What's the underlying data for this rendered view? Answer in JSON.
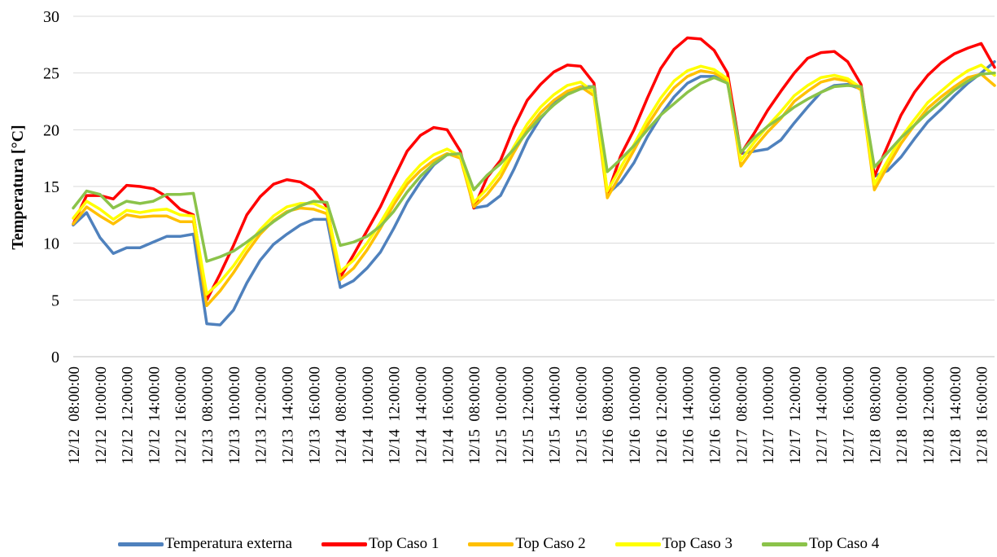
{
  "chart_data": {
    "type": "line",
    "title": "",
    "xlabel": "",
    "ylabel": "Temperatura [°C]",
    "ylim": [
      0,
      30
    ],
    "yticks": [
      0,
      5,
      10,
      15,
      20,
      25,
      30
    ],
    "grid": "horizontal",
    "legend_position": "bottom",
    "x": [
      "12/12 08:00:00",
      "12/12 09:00:00",
      "12/12 10:00:00",
      "12/12 11:00:00",
      "12/12 12:00:00",
      "12/12 13:00:00",
      "12/12 14:00:00",
      "12/12 15:00:00",
      "12/12 16:00:00",
      "12/12 17:00:00",
      "12/13 08:00:00",
      "12/13 09:00:00",
      "12/13 10:00:00",
      "12/13 11:00:00",
      "12/13 12:00:00",
      "12/13 13:00:00",
      "12/13 14:00:00",
      "12/13 15:00:00",
      "12/13 16:00:00",
      "12/13 17:00:00",
      "12/14 08:00:00",
      "12/14 09:00:00",
      "12/14 10:00:00",
      "12/14 11:00:00",
      "12/14 12:00:00",
      "12/14 13:00:00",
      "12/14 14:00:00",
      "12/14 15:00:00",
      "12/14 16:00:00",
      "12/14 17:00:00",
      "12/15 08:00:00",
      "12/15 09:00:00",
      "12/15 10:00:00",
      "12/15 11:00:00",
      "12/15 12:00:00",
      "12/15 13:00:00",
      "12/15 14:00:00",
      "12/15 15:00:00",
      "12/15 16:00:00",
      "12/15 17:00:00",
      "12/16 08:00:00",
      "12/16 09:00:00",
      "12/16 10:00:00",
      "12/16 11:00:00",
      "12/16 12:00:00",
      "12/16 13:00:00",
      "12/16 14:00:00",
      "12/16 15:00:00",
      "12/16 16:00:00",
      "12/16 17:00:00",
      "12/17 08:00:00",
      "12/17 09:00:00",
      "12/17 10:00:00",
      "12/17 11:00:00",
      "12/17 12:00:00",
      "12/17 13:00:00",
      "12/17 14:00:00",
      "12/17 15:00:00",
      "12/17 16:00:00",
      "12/17 17:00:00",
      "12/18 08:00:00",
      "12/18 09:00:00",
      "12/18 10:00:00",
      "12/18 11:00:00",
      "12/18 12:00:00",
      "12/18 13:00:00",
      "12/18 14:00:00",
      "12/18 15:00:00",
      "12/18 16:00:00",
      "12/18 17:00:00"
    ],
    "x_tick_labels": [
      "12/12  08:00:00",
      "12/12  10:00:00",
      "12/12  12:00:00",
      "12/12  14:00:00",
      "12/12  16:00:00",
      "12/13  08:00:00",
      "12/13  10:00:00",
      "12/13  12:00:00",
      "12/13  14:00:00",
      "12/13  16:00:00",
      "12/14  08:00:00",
      "12/14  10:00:00",
      "12/14  12:00:00",
      "12/14  14:00:00",
      "12/14  16:00:00",
      "12/15  08:00:00",
      "12/15  10:00:00",
      "12/15  12:00:00",
      "12/15  14:00:00",
      "12/15  16:00:00",
      "12/16  08:00:00",
      "12/16  10:00:00",
      "12/16  12:00:00",
      "12/16  14:00:00",
      "12/16  16:00:00",
      "12/17  08:00:00",
      "12/17  10:00:00",
      "12/17  12:00:00",
      "12/17  14:00:00",
      "12/17  16:00:00",
      "12/18  08:00:00",
      "12/18  10:00:00",
      "12/18  12:00:00",
      "12/18  14:00:00",
      "12/18  16:00:00"
    ],
    "series": [
      {
        "name": "Temperatura externa",
        "color": "#4f81bd",
        "values": [
          11.6,
          12.7,
          10.5,
          9.1,
          9.6,
          9.6,
          10.1,
          10.6,
          10.6,
          10.8,
          2.9,
          2.8,
          4.1,
          6.5,
          8.5,
          9.9,
          10.8,
          11.6,
          12.1,
          12.1,
          6.1,
          6.7,
          7.8,
          9.2,
          11.3,
          13.6,
          15.4,
          16.9,
          17.8,
          17.9,
          13.1,
          13.3,
          14.2,
          16.5,
          19.1,
          21.0,
          22.3,
          23.3,
          23.8,
          23.8,
          14.3,
          15.4,
          17.1,
          19.4,
          21.3,
          22.9,
          24.1,
          24.7,
          24.7,
          24.3,
          17.9,
          18.1,
          18.3,
          19.1,
          20.6,
          22.0,
          23.3,
          23.9,
          24.0,
          23.6,
          15.9,
          16.4,
          17.6,
          19.2,
          20.7,
          21.8,
          23.0,
          24.1,
          25.0,
          26.0
        ]
      },
      {
        "name": "Top Caso 1",
        "color": "#ff0000",
        "values": [
          11.7,
          14.2,
          14.2,
          13.9,
          15.1,
          15.0,
          14.8,
          14.1,
          13.0,
          12.5,
          5.0,
          7.3,
          9.8,
          12.5,
          14.1,
          15.2,
          15.6,
          15.4,
          14.7,
          13.2,
          7.0,
          9.0,
          11.1,
          13.2,
          15.7,
          18.1,
          19.5,
          20.2,
          20.0,
          18.1,
          13.1,
          15.8,
          17.3,
          20.2,
          22.6,
          24.0,
          25.1,
          25.7,
          25.6,
          24.1,
          14.3,
          17.7,
          20.0,
          22.8,
          25.4,
          27.1,
          28.1,
          28.0,
          27.0,
          25.0,
          17.9,
          19.7,
          21.7,
          23.4,
          25.0,
          26.3,
          26.8,
          26.9,
          26.0,
          24.0,
          15.9,
          18.6,
          21.3,
          23.3,
          24.8,
          25.9,
          26.7,
          27.2,
          27.6,
          25.5
        ]
      },
      {
        "name": "Top Caso 2",
        "color": "#ffc000",
        "values": [
          11.7,
          13.2,
          12.4,
          11.7,
          12.5,
          12.3,
          12.4,
          12.4,
          11.9,
          11.9,
          4.5,
          5.8,
          7.4,
          9.2,
          10.8,
          12.0,
          12.8,
          13.1,
          13.0,
          12.6,
          6.8,
          7.8,
          9.4,
          11.3,
          13.4,
          15.2,
          16.4,
          17.3,
          17.9,
          17.5,
          13.2,
          14.3,
          15.8,
          18.0,
          20.0,
          21.5,
          22.6,
          23.4,
          23.8,
          23.0,
          14.0,
          16.1,
          18.2,
          20.4,
          22.2,
          23.7,
          24.7,
          25.2,
          25.0,
          24.3,
          16.8,
          18.4,
          19.8,
          21.0,
          22.5,
          23.4,
          24.2,
          24.5,
          24.3,
          23.5,
          14.7,
          16.8,
          18.8,
          20.4,
          21.9,
          22.9,
          23.8,
          24.6,
          24.9,
          23.9
        ]
      },
      {
        "name": "Top Caso 3",
        "color": "#ffff00",
        "values": [
          12.2,
          13.7,
          13.0,
          12.1,
          12.9,
          12.7,
          12.9,
          13.0,
          12.5,
          12.4,
          5.5,
          6.6,
          8.0,
          9.7,
          11.2,
          12.4,
          13.2,
          13.5,
          13.5,
          13.0,
          7.5,
          8.5,
          10.0,
          11.8,
          13.8,
          15.6,
          16.9,
          17.8,
          18.3,
          17.7,
          13.6,
          14.8,
          16.3,
          18.5,
          20.5,
          22.0,
          23.1,
          23.9,
          24.2,
          23.3,
          14.6,
          16.7,
          18.7,
          20.9,
          22.8,
          24.3,
          25.2,
          25.6,
          25.3,
          24.5,
          17.3,
          18.9,
          20.3,
          21.6,
          23.0,
          23.9,
          24.6,
          24.8,
          24.5,
          23.7,
          15.2,
          17.3,
          19.3,
          20.9,
          22.4,
          23.4,
          24.4,
          25.2,
          25.7,
          24.8
        ]
      },
      {
        "name": "Top Caso 4",
        "color": "#8bc34a",
        "values": [
          13.1,
          14.6,
          14.3,
          13.1,
          13.7,
          13.5,
          13.7,
          14.3,
          14.3,
          14.4,
          8.4,
          8.8,
          9.3,
          10.1,
          11.0,
          11.9,
          12.7,
          13.3,
          13.7,
          13.6,
          9.8,
          10.1,
          10.6,
          11.5,
          12.8,
          14.5,
          15.9,
          17.0,
          17.8,
          17.9,
          14.7,
          16.0,
          17.0,
          18.3,
          19.8,
          21.1,
          22.2,
          23.1,
          23.6,
          23.8,
          16.3,
          17.4,
          18.6,
          20.0,
          21.3,
          22.3,
          23.3,
          24.1,
          24.6,
          24.1,
          18.0,
          19.3,
          20.3,
          21.1,
          22.0,
          22.7,
          23.3,
          23.8,
          23.9,
          23.8,
          16.7,
          18.0,
          19.3,
          20.4,
          21.5,
          22.5,
          23.5,
          24.3,
          24.9,
          25.0
        ]
      }
    ]
  }
}
